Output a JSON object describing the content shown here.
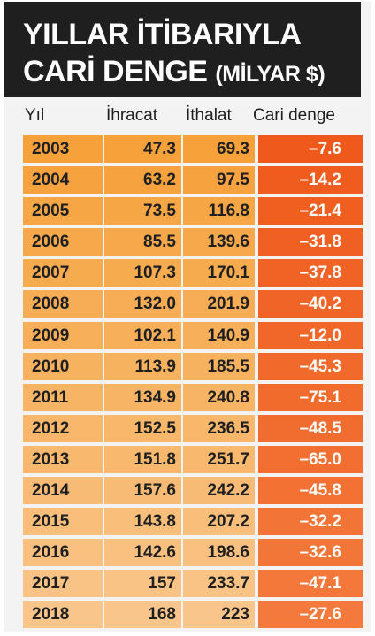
{
  "chart_data": {
    "type": "table",
    "title_line1": "YILLAR İTİBARIYLA",
    "title_line2": "CARİ DENGE",
    "title_unit": "(MİLYAR $)",
    "columns": [
      "Yıl",
      "İhracat",
      "İthalat",
      "Cari denge"
    ],
    "rows": [
      {
        "year": "2003",
        "export": "47.3",
        "import": "69.3",
        "balance": "–7.6"
      },
      {
        "year": "2004",
        "export": "63.2",
        "import": "97.5",
        "balance": "–14.2"
      },
      {
        "year": "2005",
        "export": "73.5",
        "import": "116.8",
        "balance": "–21.4"
      },
      {
        "year": "2006",
        "export": "85.5",
        "import": "139.6",
        "balance": "–31.8"
      },
      {
        "year": "2007",
        "export": "107.3",
        "import": "170.1",
        "balance": "–37.8"
      },
      {
        "year": "2008",
        "export": "132.0",
        "import": "201.9",
        "balance": "–40.2"
      },
      {
        "year": "2009",
        "export": "102.1",
        "import": "140.9",
        "balance": "–12.0"
      },
      {
        "year": "2010",
        "export": "113.9",
        "import": "185.5",
        "balance": "–45.3"
      },
      {
        "year": "2011",
        "export": "134.9",
        "import": "240.8",
        "balance": "–75.1"
      },
      {
        "year": "2012",
        "export": "152.5",
        "import": "236.5",
        "balance": "–48.5"
      },
      {
        "year": "2013",
        "export": "151.8",
        "import": "251.7",
        "balance": "–65.0"
      },
      {
        "year": "2014",
        "export": "157.6",
        "import": "242.2",
        "balance": "–45.8"
      },
      {
        "year": "2015",
        "export": "143.8",
        "import": "207.2",
        "balance": "–32.2"
      },
      {
        "year": "2016",
        "export": "142.6",
        "import": "198.6",
        "balance": "–32.6"
      },
      {
        "year": "2017",
        "export": "157",
        "import": "233.7",
        "balance": "–47.1"
      },
      {
        "year": "2018",
        "export": "168",
        "import": "223",
        "balance": "–27.6"
      }
    ],
    "colors": {
      "banner": "#1f1f1f",
      "row_light_start": "#f6a13a",
      "row_light_end": "#f9c58a",
      "balance_start": "#ef5a1c",
      "balance_end": "#f37a3c"
    }
  }
}
